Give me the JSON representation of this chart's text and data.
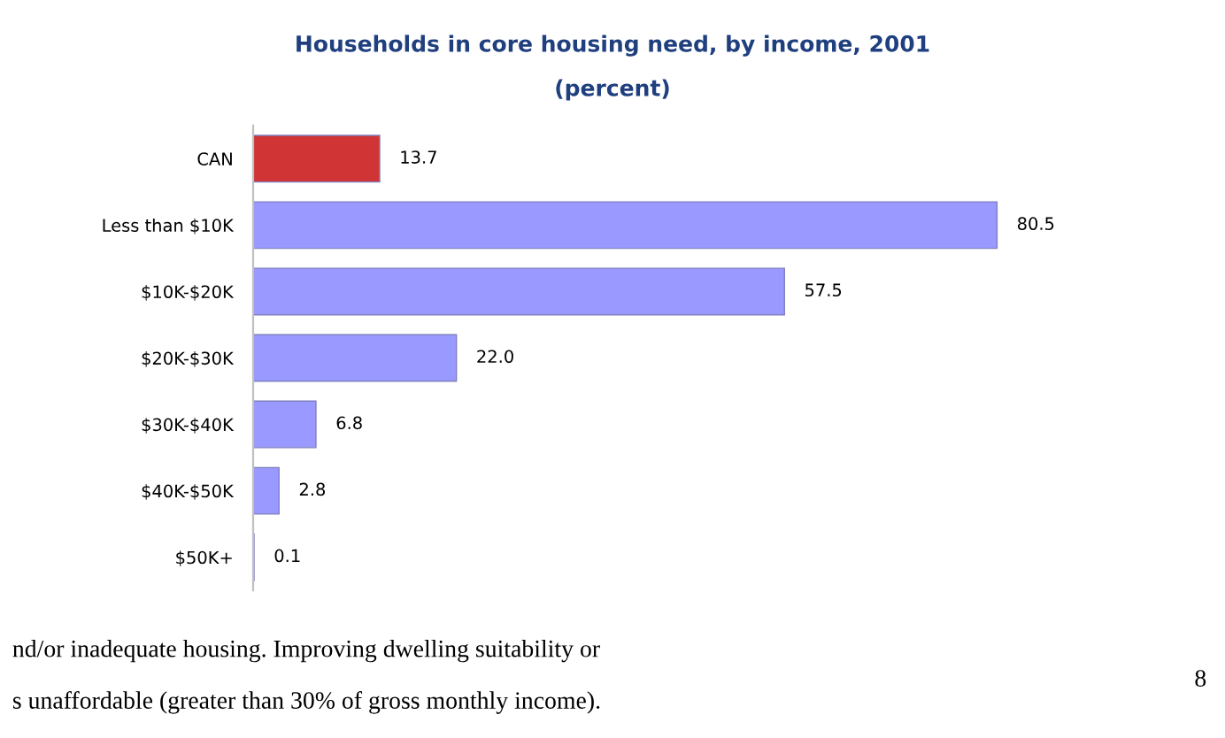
{
  "chart_data": {
    "type": "bar",
    "orientation": "horizontal",
    "title": "Households in core housing need, by income, 2001",
    "subtitle": "(percent)",
    "categories": [
      "CAN",
      "Less than $10K",
      "$10K-$20K",
      "$20K-$30K",
      "$30K-$40K",
      "$40K-$50K",
      "$50K+"
    ],
    "values": [
      13.7,
      80.5,
      57.5,
      22.0,
      6.8,
      2.8,
      0.1
    ],
    "colors": [
      "#d03434",
      "#9999ff",
      "#9999ff",
      "#9999ff",
      "#9999ff",
      "#9999ff",
      "#9999ff"
    ],
    "value_labels": [
      "13.7",
      "80.5",
      "57.5",
      "22.0",
      "6.8",
      "2.8",
      "0.1"
    ],
    "grid": false,
    "legend": false,
    "annotations": [
      "nd/or inadequate housing. Improving dwelling suitability or",
      "s unaffordable (greater than 30% of gross monthly income).",
      "8"
    ]
  }
}
